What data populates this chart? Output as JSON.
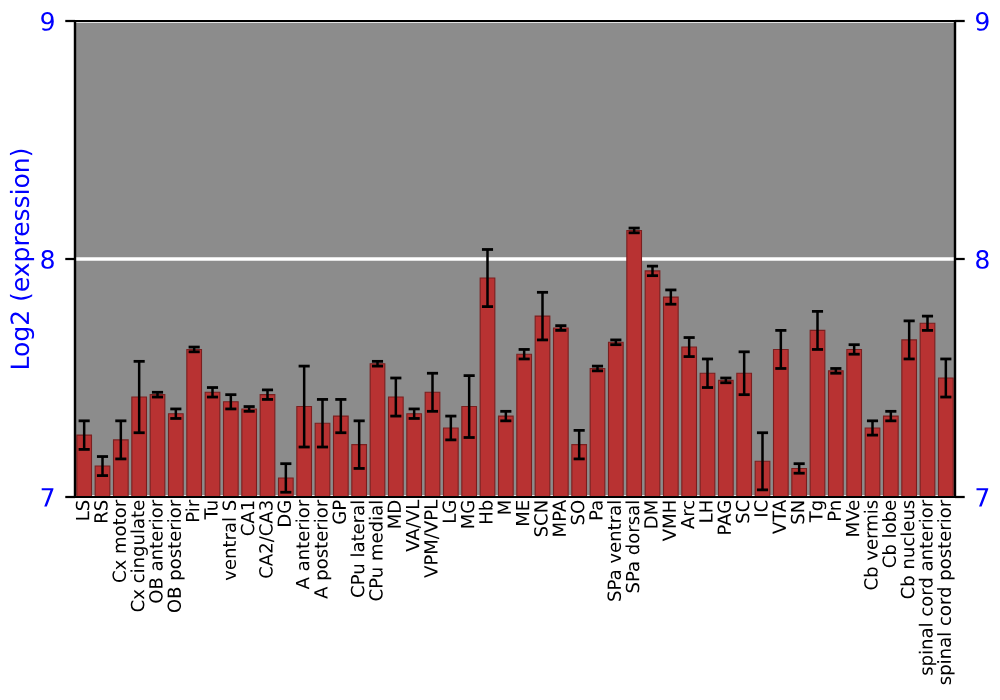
{
  "chart_data": {
    "type": "bar",
    "ylabel": "Log2 (expression)",
    "categories": [
      "LS",
      "RS",
      "Cx motor",
      "Cx cingulate",
      "OB anterior",
      "OB posterior",
      "Pir",
      "Tu",
      "ventral S",
      "CA1",
      "CA2/CA3",
      "DG",
      "A anterior",
      "A posterior",
      "GP",
      "CPu lateral",
      "CPu medial",
      "MD",
      "VA/VL",
      "VPM/VPL",
      "LG",
      "MG",
      "Hb",
      "M",
      "ME",
      "SCN",
      "MPA",
      "SO",
      "Pa",
      "SPa ventral",
      "SPa dorsal",
      "DM",
      "VMH",
      "Arc",
      "LH",
      "PAG",
      "SC",
      "IC",
      "VTA",
      "SN",
      "Tg",
      "Pn",
      "MVe",
      "Cb vermis",
      "Cb lobe",
      "Cb nucleus",
      "spinal cord anterior",
      "spinal cord posterior"
    ],
    "values": [
      7.26,
      7.13,
      7.24,
      7.42,
      7.43,
      7.35,
      7.62,
      7.44,
      7.4,
      7.37,
      7.43,
      7.08,
      7.38,
      7.31,
      7.34,
      7.22,
      7.56,
      7.42,
      7.35,
      7.44,
      7.29,
      7.38,
      7.92,
      7.34,
      7.6,
      7.76,
      7.71,
      7.22,
      7.54,
      7.65,
      8.12,
      7.95,
      7.84,
      7.63,
      7.52,
      7.49,
      7.52,
      7.15,
      7.62,
      7.12,
      7.7,
      7.53,
      7.62,
      7.29,
      7.34,
      7.66,
      7.73,
      7.5
    ],
    "errors": [
      0.06,
      0.04,
      0.08,
      0.15,
      0.01,
      0.02,
      0.01,
      0.02,
      0.03,
      0.01,
      0.02,
      0.06,
      0.17,
      0.1,
      0.07,
      0.1,
      0.01,
      0.08,
      0.02,
      0.08,
      0.05,
      0.13,
      0.12,
      0.02,
      0.02,
      0.1,
      0.01,
      0.06,
      0.01,
      0.01,
      0.01,
      0.02,
      0.03,
      0.04,
      0.06,
      0.01,
      0.09,
      0.12,
      0.08,
      0.02,
      0.08,
      0.01,
      0.02,
      0.03,
      0.02,
      0.08,
      0.03,
      0.08
    ],
    "color": "#b83232",
    "ylim": [
      7,
      9
    ],
    "yticks": [
      7,
      8,
      9
    ],
    "y2lim": [
      7,
      9
    ],
    "y2ticks": [
      7,
      8,
      9
    ],
    "grid": "y"
  }
}
